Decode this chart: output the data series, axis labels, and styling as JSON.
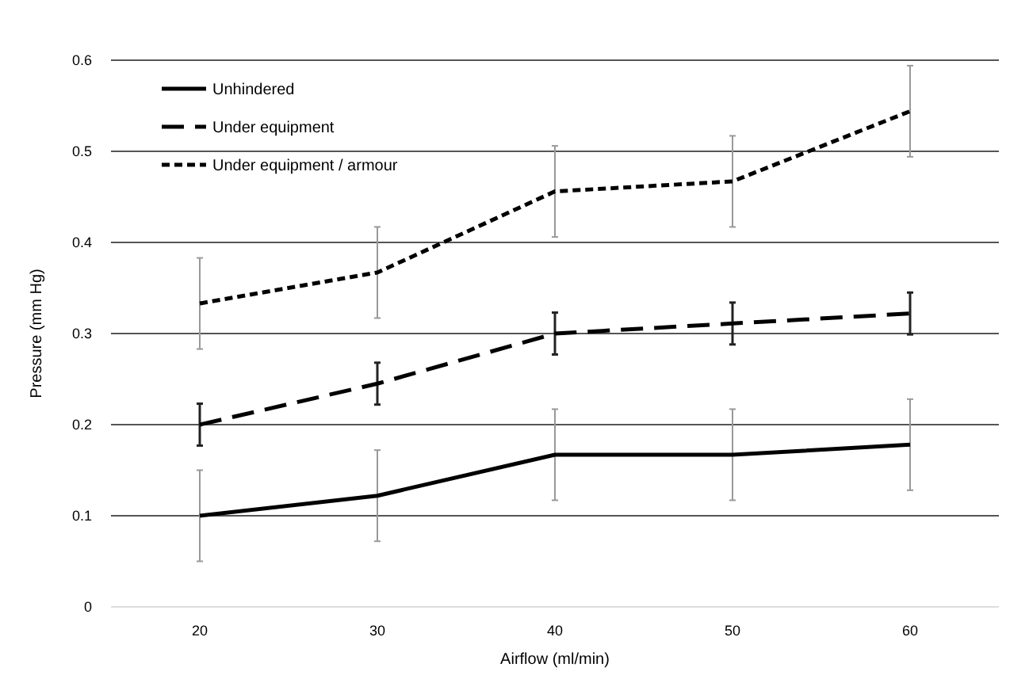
{
  "chart_data": {
    "type": "line",
    "xlabel": "Airflow (ml/min)",
    "ylabel": "Pressure (mm Hg)",
    "categories": [
      "20",
      "30",
      "40",
      "50",
      "60"
    ],
    "ylim": [
      0,
      0.6
    ],
    "yticks": [
      0,
      0.1,
      0.2,
      0.3,
      0.4,
      0.5,
      0.6
    ],
    "grid": "y",
    "legend": "top left",
    "marker": "none",
    "series": [
      {
        "name": "Unhindered",
        "color": "#000000",
        "line_style": "solid",
        "values": [
          0.1,
          0.122,
          0.167,
          0.167,
          0.178
        ],
        "errors": [
          0.05,
          0.05,
          0.05,
          0.05,
          0.05
        ]
      },
      {
        "name": "Under equipment",
        "color": "#000000",
        "line_style": "dashed",
        "values": [
          0.2,
          0.245,
          0.3,
          0.311,
          0.322
        ],
        "errors": [
          0.023,
          0.023,
          0.023,
          0.023,
          0.023
        ]
      },
      {
        "name": "Under equipment / armour",
        "color": "#000000",
        "line_style": "dotted",
        "values": [
          0.333,
          0.367,
          0.456,
          0.467,
          0.544
        ],
        "errors": [
          0.05,
          0.05,
          0.05,
          0.05,
          0.05
        ]
      }
    ]
  }
}
